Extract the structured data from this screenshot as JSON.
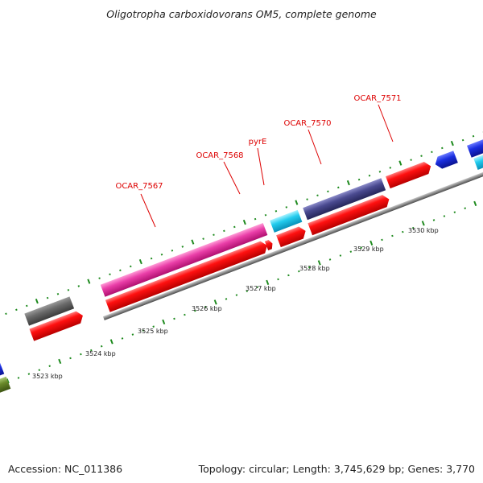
{
  "title": "Oligotropha carboxidovorans OM5, complete genome",
  "footer": {
    "accession": "Accession: NC_011386",
    "stats": "Topology: circular; Length: 3,745,629 bp; Genes: 3,770"
  },
  "colors": {
    "backbone": "#8a8a8a",
    "tick": "#1e8a1e",
    "label_red": "#dd0000",
    "cds_red": "#ee0000",
    "gray_gene": "#666666",
    "magenta_gene": "#e83fa8",
    "cyan_gene": "#22ccee",
    "purple_gene": "#4a4a90",
    "blue_gene": "#1a2ee0",
    "olive_gene": "#6a8a2a"
  },
  "axis": {
    "ticks": [
      "3523 kbp",
      "3524 kbp",
      "3525 kbp",
      "3526 kbp",
      "3527 kbp",
      "3528 kbp",
      "3529 kbp",
      "3530 kbp"
    ]
  },
  "gene_labels": [
    {
      "name": "OCAR_7567",
      "color": "#dd0000"
    },
    {
      "name": "OCAR_7568",
      "color": "#dd0000"
    },
    {
      "name": "pyrE",
      "color": "#dd0000"
    },
    {
      "name": "OCAR_7570",
      "color": "#dd0000"
    },
    {
      "name": "OCAR_7571",
      "color": "#dd0000"
    }
  ]
}
